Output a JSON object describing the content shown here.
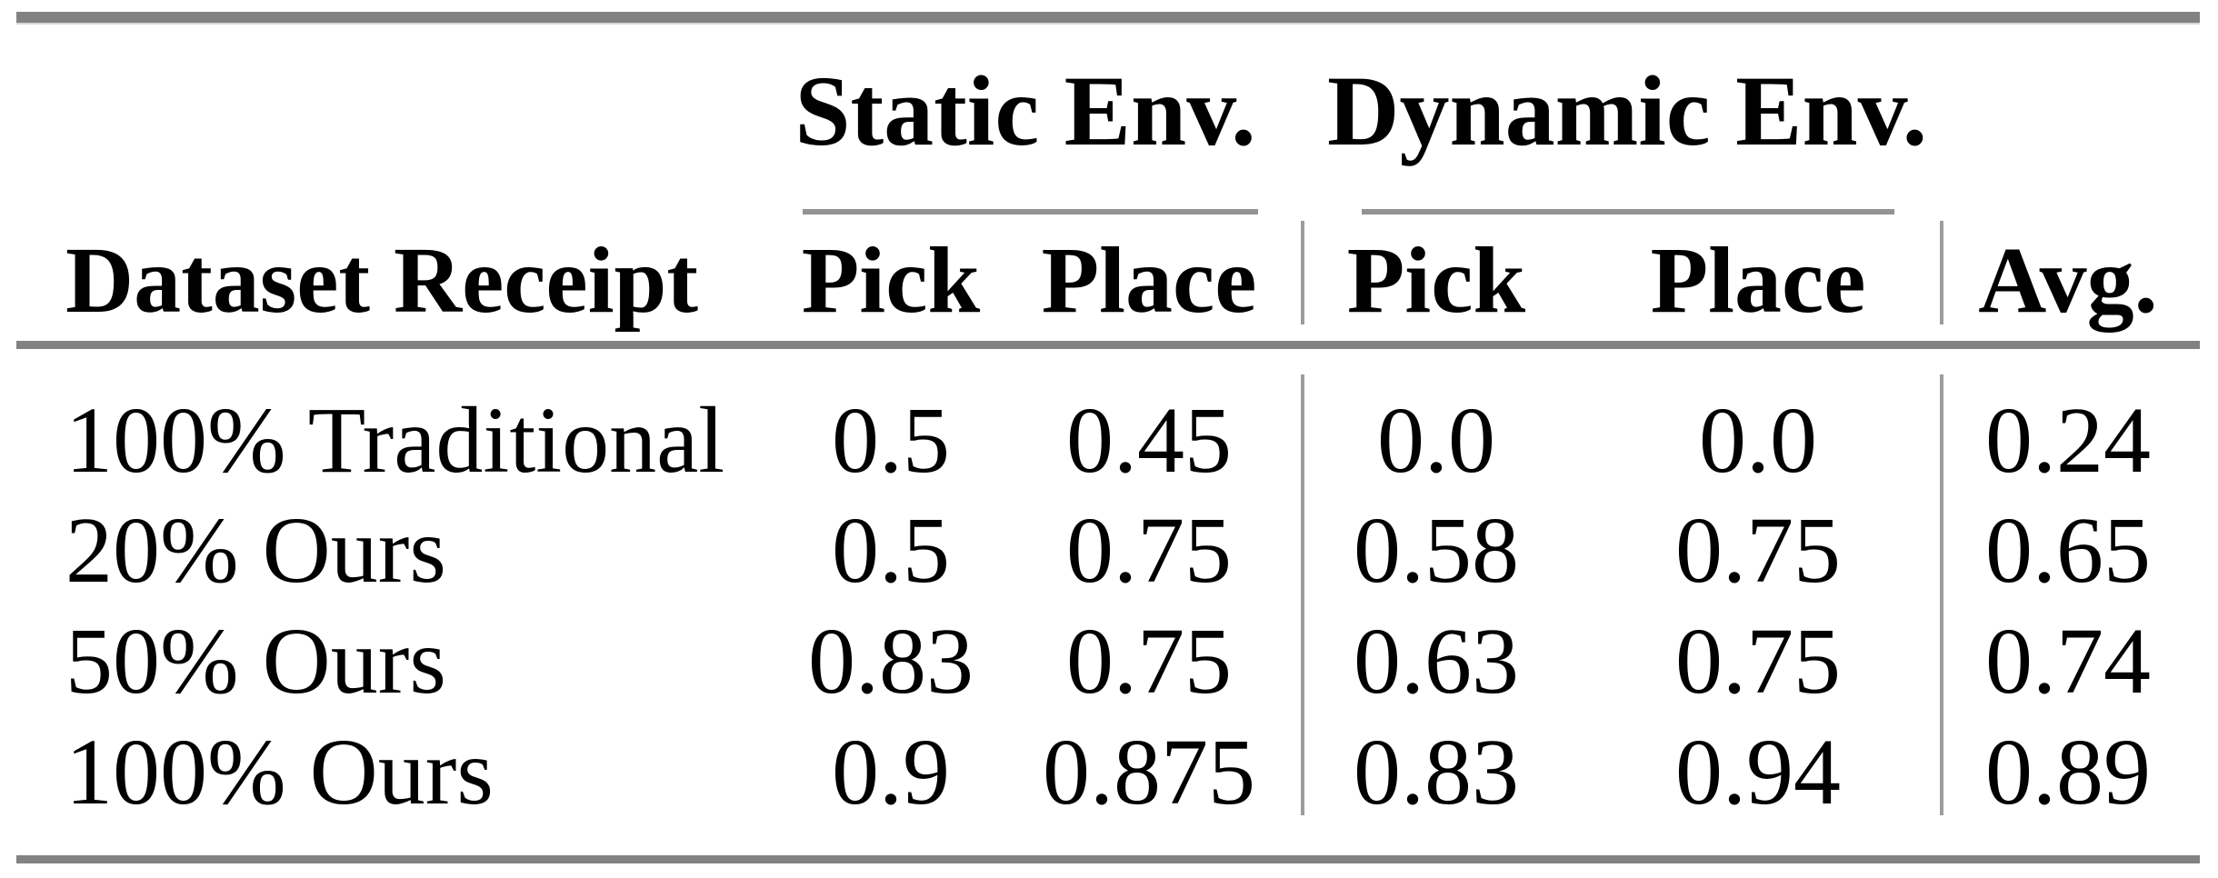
{
  "figure": {
    "group_headers": {
      "static": "Static Env.",
      "dynamic": "Dynamic Env."
    },
    "column_headers": {
      "row_label": "Dataset Receipt",
      "static_pick": "Pick",
      "static_place": "Place",
      "dynamic_pick": "Pick",
      "dynamic_place": "Place",
      "avg": "Avg."
    },
    "rows": [
      {
        "label": "100% Traditional",
        "values": [
          "0.5",
          "0.45",
          "0.0",
          "0.0",
          "0.24"
        ]
      },
      {
        "label": "20% Ours",
        "values": [
          "0.5",
          "0.75",
          "0.58",
          "0.75",
          "0.65"
        ]
      },
      {
        "label": "50% Ours",
        "values": [
          "0.83",
          "0.75",
          "0.63",
          "0.75",
          "0.74"
        ]
      },
      {
        "label": "100% Ours",
        "values": [
          "0.9",
          "0.875",
          "0.83",
          "0.94",
          "0.89"
        ]
      }
    ]
  },
  "chart_data": {
    "type": "table",
    "title": "",
    "column_groups": [
      "Static Env.",
      "Dynamic Env."
    ],
    "columns": [
      "Dataset Receipt",
      "Static Env. Pick",
      "Static Env. Place",
      "Dynamic Env. Pick",
      "Dynamic Env. Place",
      "Avg."
    ],
    "rows": [
      [
        "100% Traditional",
        0.5,
        0.45,
        0.0,
        0.0,
        0.24
      ],
      [
        "20% Ours",
        0.5,
        0.75,
        0.58,
        0.75,
        0.65
      ],
      [
        "50% Ours",
        0.83,
        0.75,
        0.63,
        0.75,
        0.74
      ],
      [
        "100% Ours",
        0.9,
        0.875,
        0.83,
        0.94,
        0.89
      ]
    ]
  },
  "colors": {
    "text": "#000000",
    "rule_heavy": "#828282",
    "rule_light": "#939393",
    "divider": "#9c9c9c",
    "background": "#ffffff"
  }
}
